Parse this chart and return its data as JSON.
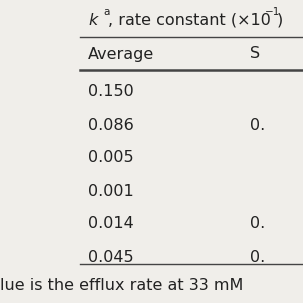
{
  "header_k": "k",
  "header_sup": "a",
  "header_tail": ", rate constant (×10",
  "header_exp": "−1",
  "header_close": ")",
  "subheader_avg": "Average",
  "subheader_s": "S",
  "rows": [
    [
      "0.150",
      ""
    ],
    [
      "0.086",
      "0."
    ],
    [
      "0.005",
      ""
    ],
    [
      "0.001",
      ""
    ],
    [
      "0.014",
      "0."
    ],
    [
      "0.045",
      "0."
    ]
  ],
  "footer_text": "lue is the efflux rate at 33 mM",
  "bg_color": "#f0eeea",
  "text_color": "#222222",
  "line_color": "#444444",
  "font_size": 11.5,
  "sup_font_size": 7.5
}
